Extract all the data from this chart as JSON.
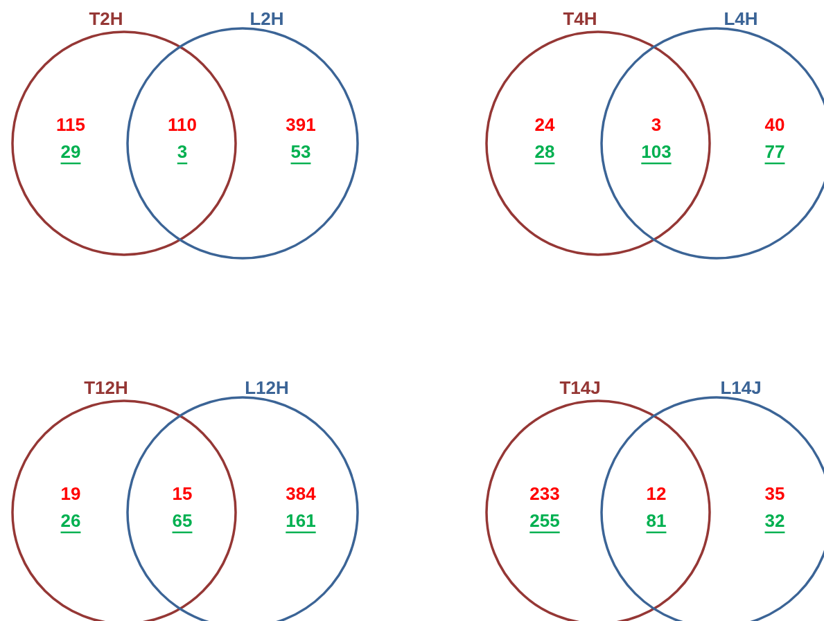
{
  "chart_data": [
    {
      "type": "other",
      "categories": [
        "T2H",
        "L2H"
      ],
      "colors": [
        "#953735",
        "#3b6496"
      ],
      "data_labels": true,
      "annotations": [
        "110",
        "3"
      ],
      "series": [
        {
          "color": "#ff0000",
          "values": [
            115,
            391
          ]
        },
        {
          "color": "#00b050",
          "values": [
            29,
            53
          ]
        }
      ]
    },
    {
      "type": "other",
      "categories": [
        "T4H",
        "L4H"
      ],
      "colors": [
        "#953735",
        "#3b6496"
      ],
      "data_labels": true,
      "annotations": [
        "3",
        "103"
      ],
      "series": [
        {
          "color": "#ff0000",
          "values": [
            24,
            40
          ]
        },
        {
          "color": "#00b050",
          "values": [
            28,
            77
          ]
        }
      ]
    },
    {
      "type": "other",
      "categories": [
        "T12H",
        "L12H"
      ],
      "colors": [
        "#953735",
        "#3b6496"
      ],
      "data_labels": true,
      "annotations": [
        "15",
        "65"
      ],
      "series": [
        {
          "color": "#ff0000",
          "values": [
            19,
            384
          ]
        },
        {
          "color": "#00b050",
          "values": [
            26,
            161
          ]
        }
      ]
    },
    {
      "type": "other",
      "categories": [
        "T14J",
        "L14J"
      ],
      "colors": [
        "#953735",
        "#3b6496"
      ],
      "data_labels": true,
      "annotations": [
        "12",
        "81"
      ],
      "series": [
        {
          "color": "#ff0000",
          "values": [
            233,
            35
          ]
        },
        {
          "color": "#00b050",
          "values": [
            255,
            32
          ]
        }
      ]
    }
  ]
}
